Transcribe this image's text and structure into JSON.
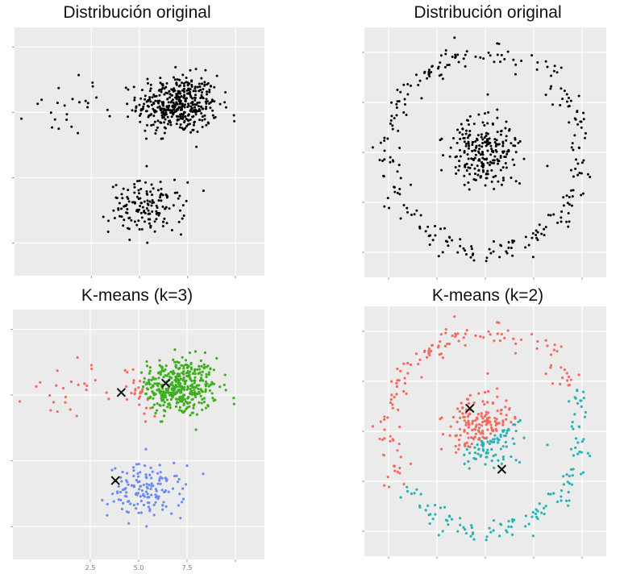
{
  "chart_data": [
    {
      "type": "scatter",
      "title": "Distribución original",
      "xlim": [
        -1.5,
        11.5
      ],
      "ylim": [
        -7.5,
        11.5
      ],
      "x_ticks": [
        2.5,
        5.0,
        7.5,
        10.0
      ],
      "y_ticks": [
        -5,
        0,
        5,
        10
      ],
      "grid": true,
      "clusters": [
        {
          "center": [
            7.0,
            5.6
          ],
          "spread": [
            1.4,
            1.5
          ],
          "count": 430
        },
        {
          "center": [
            5.4,
            -2.3
          ],
          "spread": [
            1.3,
            1.3
          ],
          "count": 150
        },
        {
          "center": [
            1.6,
            5.6
          ],
          "spread": [
            1.6,
            1.5
          ],
          "count": 25
        }
      ],
      "series": [
        {
          "color": "#000000"
        }
      ]
    },
    {
      "type": "scatter",
      "title": "Distribución original",
      "xlim": [
        -1.25,
        1.25
      ],
      "ylim": [
        -1.25,
        1.25
      ],
      "x_ticks": [
        -1.0,
        -0.5,
        0.0,
        0.5,
        1.0
      ],
      "y_ticks": [
        -1.0,
        -0.5,
        0.0,
        0.5,
        1.0
      ],
      "grid": true,
      "shapes": [
        {
          "kind": "ring",
          "center": [
            0,
            0
          ],
          "radius": 1.0,
          "noise": 0.07,
          "count": 260
        },
        {
          "kind": "blob",
          "center": [
            0,
            0
          ],
          "spread": [
            0.17,
            0.17
          ],
          "count": 240
        }
      ],
      "series": [
        {
          "color": "#000000"
        }
      ]
    },
    {
      "type": "scatter",
      "title": "K-means (k=3)",
      "xlim": [
        -1.5,
        11.5
      ],
      "ylim": [
        -7.5,
        11.5
      ],
      "x_ticks": [
        2.5,
        5.0,
        7.5,
        10.0
      ],
      "y_ticks": [
        -5,
        0,
        5,
        10
      ],
      "tick_labels": [
        "2.5",
        "5.0",
        "7.5"
      ],
      "grid": true,
      "series": [
        {
          "color": "#F26B5F"
        },
        {
          "color": "#3DAF1D"
        },
        {
          "color": "#6C8CF0"
        }
      ],
      "centroids": [
        [
          4.1,
          5.2
        ],
        [
          6.4,
          5.9
        ],
        [
          3.8,
          -1.5
        ]
      ]
    },
    {
      "type": "scatter",
      "title": "K-means (k=2)",
      "xlim": [
        -1.25,
        1.25
      ],
      "ylim": [
        -1.25,
        1.25
      ],
      "x_ticks": [
        -1.0,
        -0.5,
        0.0,
        0.5,
        1.0
      ],
      "y_ticks": [
        -1.0,
        -0.5,
        0.0,
        0.5,
        1.0
      ],
      "grid": true,
      "series": [
        {
          "color": "#F26B5F"
        },
        {
          "color": "#27B3B5"
        }
      ],
      "centroids": [
        [
          -0.16,
          0.23
        ],
        [
          0.17,
          -0.38
        ]
      ]
    }
  ]
}
